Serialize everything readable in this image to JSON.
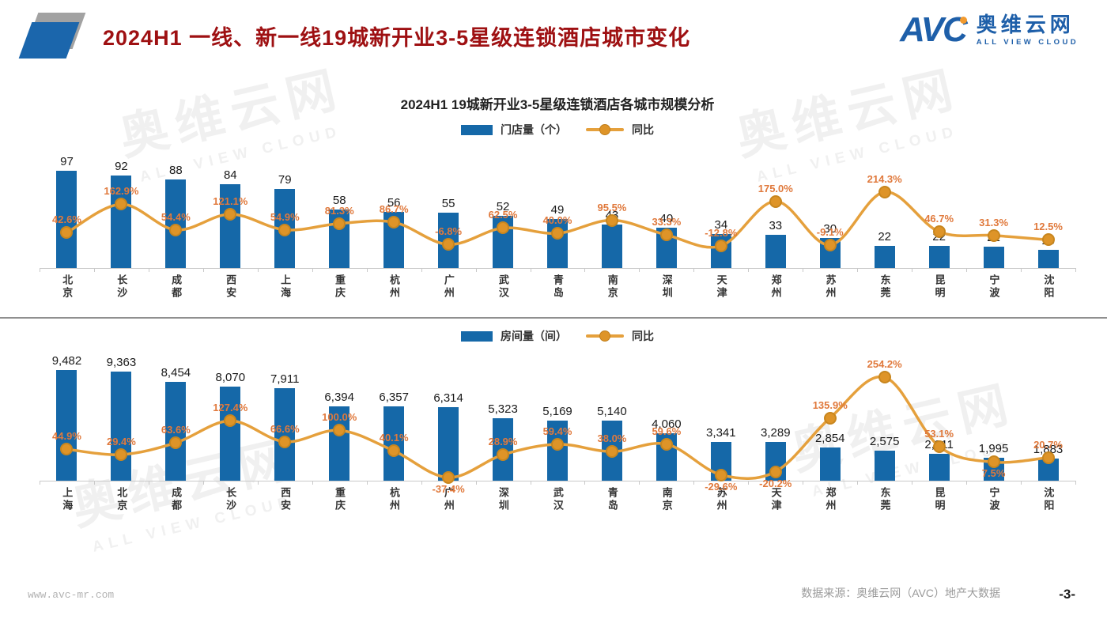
{
  "header": {
    "title": "2024H1  一线、新一线19城新开业3-5星级连锁酒店城市变化",
    "logo": {
      "abbr": "AVC",
      "cn": "奥维云网",
      "en": "ALL VIEW CLOUD"
    }
  },
  "watermark": {
    "cn": "奥维云网",
    "en": "ALL VIEW CLOUD"
  },
  "colors": {
    "bar": "#1568a8",
    "line": "#e5a03c",
    "pct_label": "#e0793c",
    "title_red": "#9e1012"
  },
  "chart_data": [
    {
      "type": "bar+line",
      "title": "2024H1 19城新开业3-5星级连锁酒店各城市规模分析",
      "legend": [
        "门店量（个）",
        "同比"
      ],
      "categories": [
        "北京",
        "长沙",
        "成都",
        "西安",
        "上海",
        "重庆",
        "杭州",
        "广州",
        "武汉",
        "青岛",
        "南京",
        "深圳",
        "天津",
        "郑州",
        "苏州",
        "东莞",
        "昆明",
        "宁波",
        "沈阳"
      ],
      "series": [
        {
          "name": "门店量（个）",
          "type": "bar",
          "values": [
            97,
            92,
            88,
            84,
            79,
            58,
            56,
            55,
            52,
            49,
            43,
            40,
            34,
            33,
            30,
            22,
            22,
            21,
            18
          ],
          "labels": [
            "97",
            "92",
            "88",
            "84",
            "79",
            "58",
            "56",
            "55",
            "52",
            "49",
            "43",
            "40",
            "34",
            "33",
            "30",
            "22",
            "22",
            "21",
            "18"
          ]
        },
        {
          "name": "同比",
          "type": "line",
          "unit": "%",
          "values": [
            42.6,
            162.9,
            54.4,
            121.1,
            54.9,
            81.3,
            86.7,
            -6.8,
            62.5,
            40.0,
            95.5,
            33.3,
            -12.8,
            175.0,
            -9.1,
            214.3,
            46.7,
            31.3,
            12.5
          ],
          "labels": [
            "42.6%",
            "162.9%",
            "54.4%",
            "121.1%",
            "54.9%",
            "81.3%",
            "86.7%",
            "-6.8%",
            "62.5%",
            "40.0%",
            "95.5%",
            "33.3%",
            "-12.8%",
            "175.0%",
            "-9.1%",
            "214.3%",
            "46.7%",
            "31.3%",
            "12.5%"
          ]
        }
      ]
    },
    {
      "type": "bar+line",
      "title": "",
      "legend": [
        "房间量（间）",
        "同比"
      ],
      "categories": [
        "上海",
        "北京",
        "成都",
        "长沙",
        "西安",
        "重庆",
        "杭州",
        "广州",
        "深圳",
        "武汉",
        "青岛",
        "南京",
        "苏州",
        "天津",
        "郑州",
        "东莞",
        "昆明",
        "宁波",
        "沈阳"
      ],
      "series": [
        {
          "name": "房间量（间）",
          "type": "bar",
          "values": [
            9482,
            9363,
            8454,
            8070,
            7911,
            6394,
            6357,
            6314,
            5323,
            5169,
            5140,
            4060,
            3341,
            3289,
            2854,
            2575,
            2311,
            1995,
            1883
          ],
          "labels": [
            "9,482",
            "9,363",
            "8,454",
            "8,070",
            "7,911",
            "6,394",
            "6,357",
            "6,314",
            "5,323",
            "5,169",
            "5,140",
            "4,060",
            "3,341",
            "3,289",
            "2,854",
            "2,575",
            "2,311",
            "1,995",
            "1,883"
          ]
        },
        {
          "name": "同比",
          "type": "line",
          "unit": "%",
          "values": [
            44.9,
            29.4,
            63.6,
            127.4,
            66.6,
            100.0,
            40.1,
            -37.4,
            28.9,
            59.4,
            38.0,
            59.6,
            -29.6,
            -20.2,
            135.9,
            254.2,
            53.1,
            7.5,
            20.7
          ],
          "labels": [
            "44.9%",
            "29.4%",
            "63.6%",
            "127.4%",
            "66.6%",
            "100.0%",
            "40.1%",
            "-37.4%",
            "28.9%",
            "59.4%",
            "38.0%",
            "59.6%",
            "-29.6%",
            "-20.2%",
            "135.9%",
            "254.2%",
            "53.1%",
            "7.5%",
            "20.7%"
          ]
        }
      ]
    }
  ],
  "footer": {
    "website": "www.avc-mr.com",
    "source": "数据来源：奥维云网（AVC）地产大数据",
    "page": "-3-"
  }
}
